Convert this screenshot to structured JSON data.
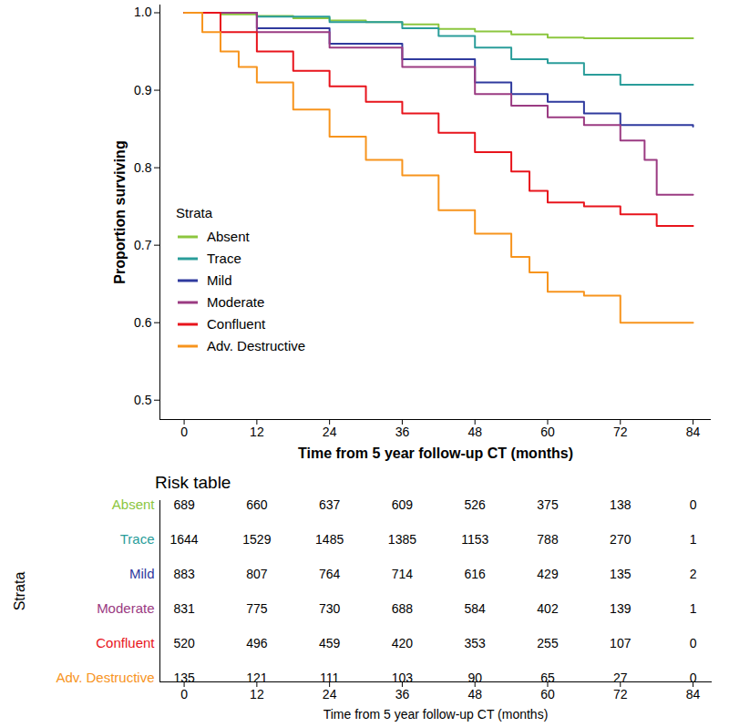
{
  "chart_data": {
    "type": "line",
    "line_style": "step",
    "xlabel": "Time from 5 year follow-up CT (months)",
    "ylabel": "Proportion surviving",
    "xlim": [
      -4,
      87
    ],
    "ylim": [
      0.475,
      1.01
    ],
    "xticks": [
      0,
      12,
      24,
      36,
      48,
      60,
      72,
      84
    ],
    "yticks": [
      0.5,
      0.6,
      0.7,
      0.8,
      0.9,
      {
        "value": 1,
        "label": "1.0"
      }
    ],
    "legend": "left",
    "legend_title": "Strata",
    "series": [
      {
        "name": "Absent",
        "color": "#8cc63f",
        "x": [
          0,
          6,
          12,
          18,
          24,
          30,
          36,
          42,
          48,
          54,
          60,
          66,
          84
        ],
        "values": [
          1,
          0.998,
          0.996,
          0.993,
          0.99,
          0.988,
          0.985,
          0.979,
          0.976,
          0.972,
          0.968,
          0.967,
          0.967
        ]
      },
      {
        "name": "Trace",
        "color": "#2a9d9a",
        "x": [
          0,
          12,
          24,
          36,
          42,
          48,
          54,
          60,
          66,
          72,
          84
        ],
        "values": [
          1,
          0.995,
          0.988,
          0.98,
          0.97,
          0.955,
          0.94,
          0.935,
          0.92,
          0.907,
          0.907
        ]
      },
      {
        "name": "Mild",
        "color": "#2f3a9e",
        "x": [
          0,
          12,
          24,
          36,
          48,
          54,
          60,
          66,
          72,
          84
        ],
        "values": [
          1,
          0.98,
          0.96,
          0.94,
          0.91,
          0.895,
          0.885,
          0.87,
          0.855,
          0.853
        ]
      },
      {
        "name": "Moderate",
        "color": "#9b3b82",
        "x": [
          0,
          12,
          24,
          36,
          48,
          54,
          60,
          66,
          72,
          76,
          78,
          84
        ],
        "values": [
          1,
          0.975,
          0.955,
          0.93,
          0.895,
          0.88,
          0.865,
          0.855,
          0.835,
          0.81,
          0.765,
          0.765
        ]
      },
      {
        "name": "Confluent",
        "color": "#e8141c",
        "x": [
          0,
          6,
          12,
          18,
          24,
          30,
          36,
          42,
          48,
          54,
          57,
          60,
          66,
          72,
          78,
          84
        ],
        "values": [
          1,
          0.975,
          0.95,
          0.925,
          0.905,
          0.885,
          0.87,
          0.845,
          0.82,
          0.795,
          0.77,
          0.755,
          0.75,
          0.74,
          0.725,
          0.725
        ]
      },
      {
        "name": "Adv. Destructive",
        "color": "#f7941d",
        "x": [
          0,
          3,
          6,
          9,
          12,
          18,
          24,
          30,
          36,
          42,
          48,
          54,
          57,
          60,
          66,
          72,
          84
        ],
        "values": [
          1,
          0.975,
          0.95,
          0.93,
          0.91,
          0.875,
          0.84,
          0.81,
          0.79,
          0.745,
          0.715,
          0.685,
          0.665,
          0.64,
          0.635,
          0.6,
          0.6
        ]
      }
    ],
    "risk_table": {
      "title": "Risk table",
      "ylabel": "Strata",
      "xlabel": "Time from 5 year follow-up CT (months)",
      "x": [
        0,
        12,
        24,
        36,
        48,
        60,
        72,
        84
      ],
      "rows": [
        {
          "name": "Absent",
          "values": [
            689,
            660,
            637,
            609,
            526,
            375,
            138,
            0
          ]
        },
        {
          "name": "Trace",
          "values": [
            1644,
            1529,
            1485,
            1385,
            1153,
            788,
            270,
            1
          ]
        },
        {
          "name": "Mild",
          "values": [
            883,
            807,
            764,
            714,
            616,
            429,
            135,
            2
          ]
        },
        {
          "name": "Moderate",
          "values": [
            831,
            775,
            730,
            688,
            584,
            402,
            139,
            1
          ]
        },
        {
          "name": "Confluent",
          "values": [
            520,
            496,
            459,
            420,
            353,
            255,
            107,
            0
          ]
        },
        {
          "name": "Adv. Destructive",
          "values": [
            135,
            121,
            111,
            103,
            90,
            65,
            27,
            0
          ]
        }
      ]
    }
  }
}
